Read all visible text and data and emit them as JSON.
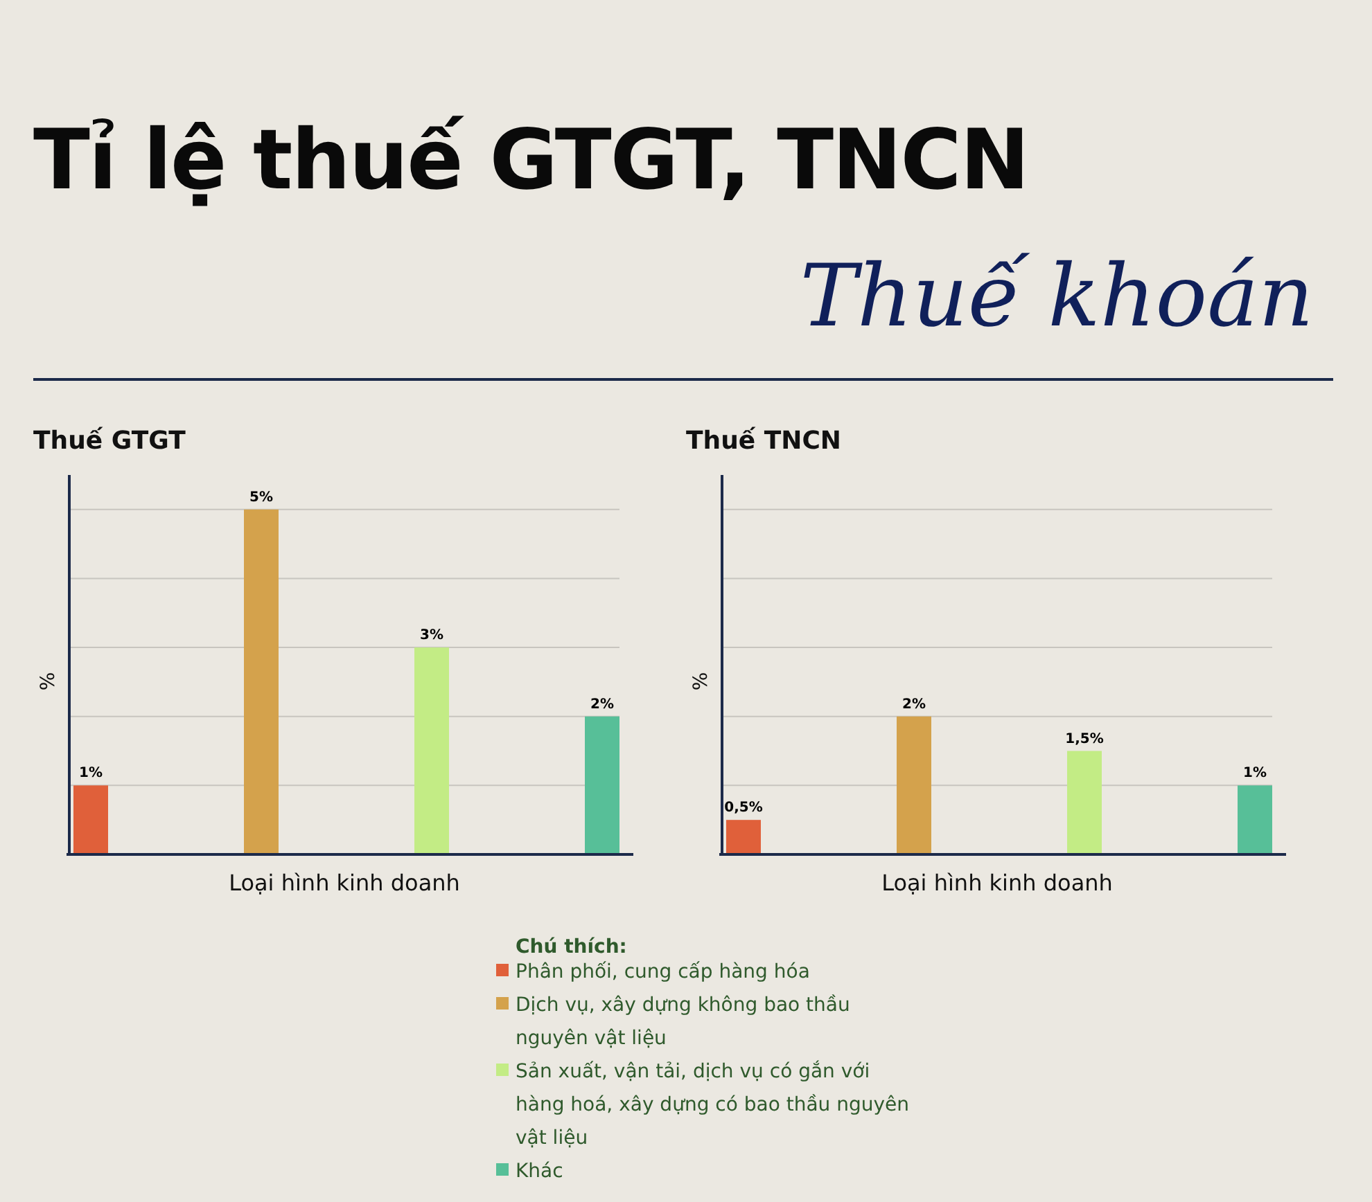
{
  "chart_data": [
    {
      "type": "bar",
      "title": "Thuế GTGT",
      "annotations": [
        "Tỉ lệ thuế GTGT, TNCN",
        "Thuế khoán"
      ],
      "xlabel": "Loại hình kinh doanh",
      "ylabel": "%",
      "legend_title": "Chú thích:",
      "legend": "bottom",
      "categories": [
        null,
        null,
        null,
        null
      ],
      "stacked": true,
      "ylim": [
        0,
        5.5
      ],
      "yticks": [
        {
          "value": 1,
          "label": null
        },
        {
          "value": 2,
          "label": null
        },
        {
          "value": 3,
          "label": null
        },
        {
          "value": 4,
          "label": null
        },
        {
          "value": 5,
          "label": null
        }
      ],
      "grid": "y",
      "series": [
        {
          "name": "Phân phối, cung cấp hàng hóa",
          "color": "#e0603a",
          "values": [
            1,
            null,
            null,
            null
          ],
          "value_labels": [
            "1%",
            null,
            null,
            null
          ]
        },
        {
          "name": "Dịch vụ, xây dựng không bao thầu nguyên vật liệu",
          "color": "#d4a24c",
          "values": [
            null,
            5,
            null,
            null
          ],
          "value_labels": [
            null,
            "5%",
            null,
            null
          ]
        },
        {
          "name": "Sản xuất, vận tải, dịch vụ có gắn với hàng hoá, xây dựng có bao thầu nguyên vật liệu",
          "color": "#c3ec85",
          "values": [
            null,
            null,
            3,
            null
          ],
          "value_labels": [
            null,
            null,
            "3%",
            null
          ]
        },
        {
          "name": "Khác",
          "color": "#57bf98",
          "values": [
            null,
            null,
            null,
            2
          ],
          "value_labels": [
            null,
            null,
            null,
            "2%"
          ]
        }
      ]
    },
    {
      "type": "bar",
      "title": "Thuế TNCN",
      "xlabel": "Loại hình kinh doanh",
      "ylabel": "%",
      "categories": [
        null,
        null,
        null,
        null
      ],
      "stacked": true,
      "ylim": [
        0,
        5.5
      ],
      "yticks": [
        {
          "value": 1,
          "label": null
        },
        {
          "value": 2,
          "label": null
        },
        {
          "value": 3,
          "label": null
        },
        {
          "value": 4,
          "label": null
        },
        {
          "value": 5,
          "label": null
        }
      ],
      "grid": "y",
      "series": [
        {
          "color": "#e0603a",
          "values": [
            0.5,
            null,
            null,
            null
          ],
          "value_labels": [
            "0,5%",
            null,
            null,
            null
          ]
        },
        {
          "color": "#d4a24c",
          "values": [
            null,
            2,
            null,
            null
          ],
          "value_labels": [
            null,
            "2%",
            null,
            null
          ]
        },
        {
          "color": "#c3ec85",
          "values": [
            null,
            null,
            1.5,
            null
          ],
          "value_labels": [
            null,
            null,
            "1,5%",
            null
          ]
        },
        {
          "color": "#57bf98",
          "values": [
            null,
            null,
            null,
            1
          ],
          "value_labels": [
            null,
            null,
            null,
            "1%"
          ]
        }
      ]
    }
  ]
}
